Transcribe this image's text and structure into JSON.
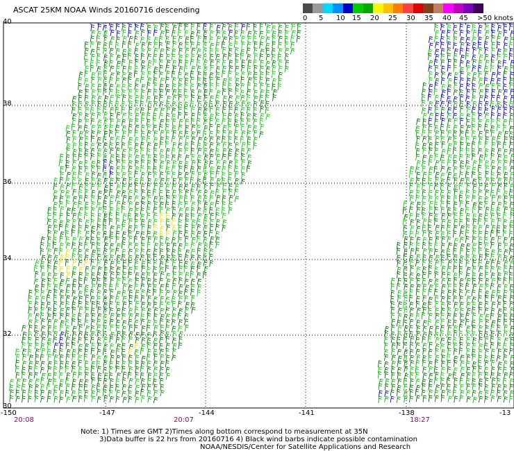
{
  "title": "ASCAT 25KM NOAA Winds 20160716 descending",
  "legend": {
    "colors": [
      "#4a4a4a",
      "#9a9a9a",
      "#00d8ff",
      "#0090ff",
      "#0000cc",
      "#00cc00",
      "#00aa00",
      "#f8f800",
      "#ffc000",
      "#ff8000",
      "#ff4040",
      "#e00000",
      "#804020",
      "#c08060",
      "#ff00ff",
      "#c000c0",
      "#8000c0",
      "#400060"
    ],
    "labels": [
      "0",
      "5",
      "10",
      "15",
      "20",
      "25",
      "30",
      "35",
      "40",
      "45",
      ">50 knots"
    ]
  },
  "axes": {
    "lat_labels": [
      "40",
      "38",
      "36",
      "34",
      "32",
      "30"
    ],
    "lon_labels": [
      "-150",
      "-147",
      "-144",
      "-141",
      "-138",
      "-13"
    ]
  },
  "pass_times": [
    "20:08",
    "20:07",
    "18:27"
  ],
  "notes": [
    "Note: 1) Times are GMT 2)Times along bottom correspond to measurement at 35N",
    "3)Data buffer is 22 hrs from 20160716 4) Black wind barbs indicate possible contamination",
    "NOAA/NESDIS/Center for Satellite Applications and Research"
  ],
  "barb_colors": {
    "dark_green": "#007000",
    "green": "#00b000",
    "light_green": "#00d800",
    "blue": "#0000cc",
    "yellow": "#f0e000"
  }
}
